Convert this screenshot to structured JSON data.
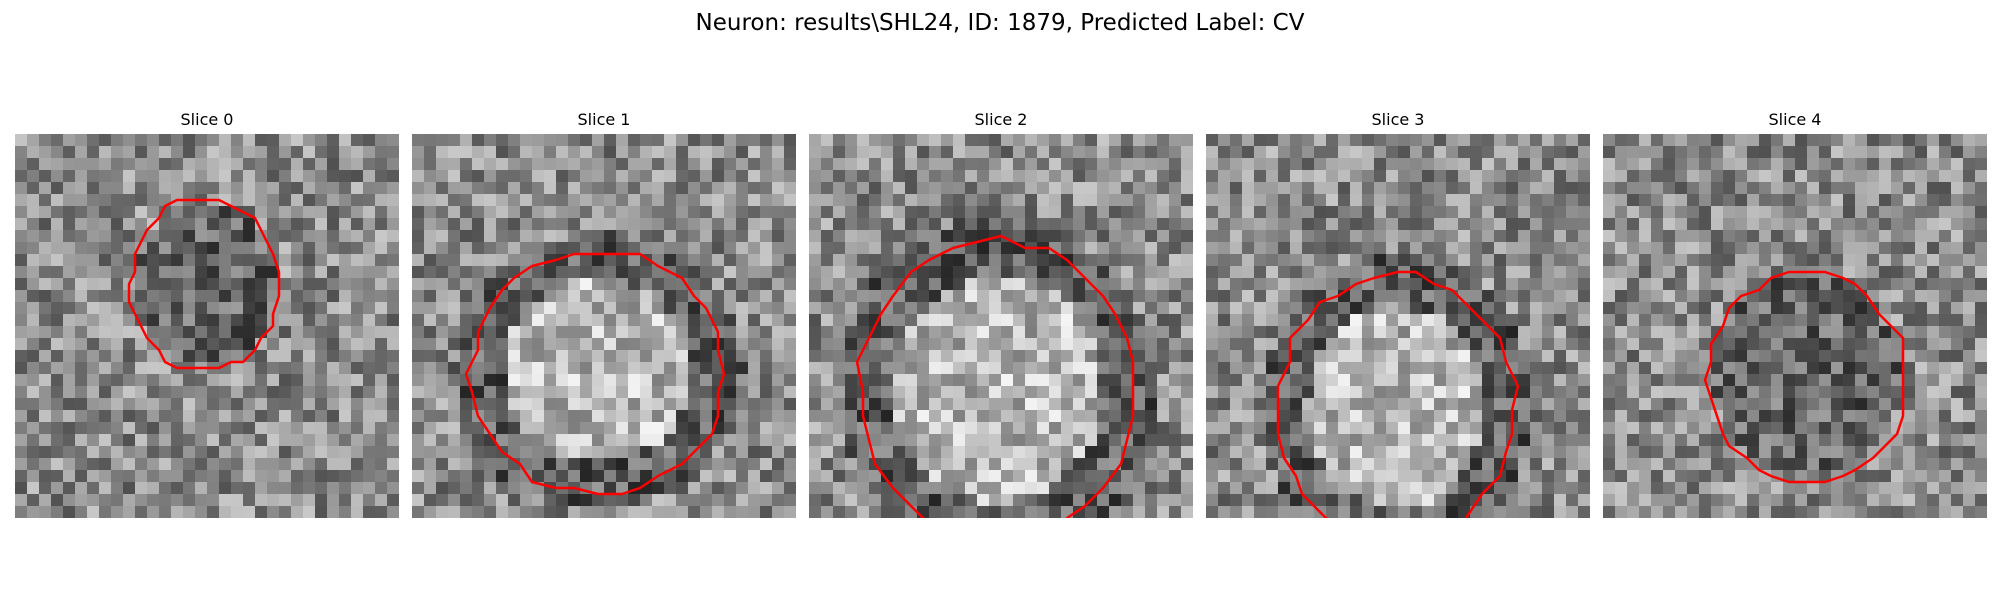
{
  "figure": {
    "title": "Neuron: results\\SHL24, ID: 1879, Predicted Label: CV",
    "outline_color": "#ff0000"
  },
  "slices": [
    {
      "title": "Slice 0",
      "center_brightness": "dark"
    },
    {
      "title": "Slice 1",
      "center_brightness": "bright"
    },
    {
      "title": "Slice 2",
      "center_brightness": "bright"
    },
    {
      "title": "Slice 3",
      "center_brightness": "bright"
    },
    {
      "title": "Slice 4",
      "center_brightness": "dark"
    }
  ]
}
